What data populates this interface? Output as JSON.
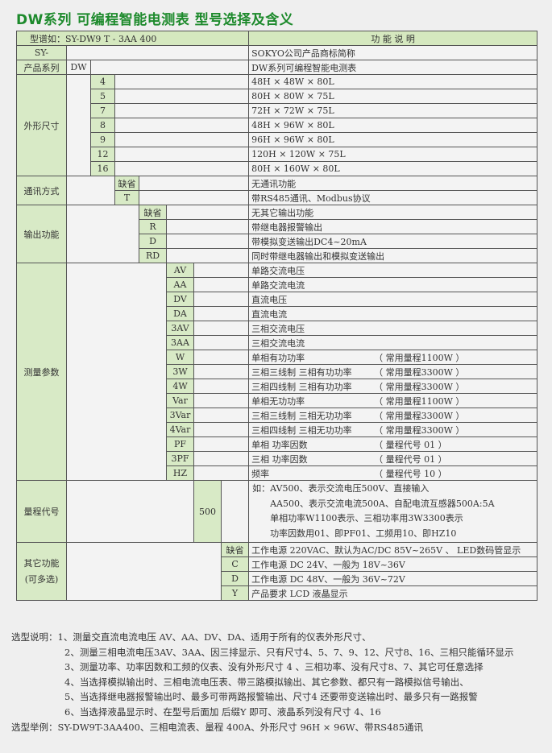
{
  "title": "DW系列 可编程智能电测表 型号选择及含义",
  "header": {
    "model": "型谱如：SY-DW9  T -  3AA  400",
    "function": "功 能 说 明"
  },
  "brand": {
    "label": "SY-",
    "desc": "SOKYO公司产品商标简称"
  },
  "series": {
    "label": "产品系列",
    "code": "DW",
    "desc": "DW系列可编程智能电测表"
  },
  "size": {
    "label": "外形尺寸",
    "rows": [
      {
        "code": "4",
        "desc": "48H × 48W × 80L"
      },
      {
        "code": "5",
        "desc": "80H × 80W × 75L"
      },
      {
        "code": "7",
        "desc": "72H × 72W × 75L"
      },
      {
        "code": "8",
        "desc": "48H × 96W × 80L"
      },
      {
        "code": "9",
        "desc": "96H × 96W × 80L"
      },
      {
        "code": "12",
        "desc": "120H × 120W × 75L"
      },
      {
        "code": "16",
        "desc": "80H × 160W × 80L"
      }
    ]
  },
  "comm": {
    "label": "通讯方式",
    "rows": [
      {
        "code": "缺省",
        "desc": "无通讯功能"
      },
      {
        "code": "T",
        "desc": "带RS485通讯、Modbus协议"
      }
    ]
  },
  "output": {
    "label": "输出功能",
    "rows": [
      {
        "code": "缺省",
        "desc": "无其它输出功能"
      },
      {
        "code": "R",
        "desc": "带继电器报警输出"
      },
      {
        "code": "D",
        "desc": "带模拟变送输出DC4~20mA"
      },
      {
        "code": "RD",
        "desc": "同时带继电器输出和模拟变送输出"
      }
    ]
  },
  "measure": {
    "label": "测量参数",
    "rows": [
      {
        "code": "AV",
        "desc": "单路交流电压",
        "note": ""
      },
      {
        "code": "AA",
        "desc": "单路交流电流",
        "note": ""
      },
      {
        "code": "DV",
        "desc": "直流电压",
        "note": ""
      },
      {
        "code": "DA",
        "desc": "直流电流",
        "note": ""
      },
      {
        "code": "3AV",
        "desc": "三相交流电压",
        "note": ""
      },
      {
        "code": "3AA",
        "desc": "三相交流电流",
        "note": ""
      },
      {
        "code": "W",
        "desc": "单相有功功率",
        "note": "（ 常用量程1100W ）"
      },
      {
        "code": "3W",
        "desc": "三相三线制  三相有功功率",
        "note": "（ 常用量程3300W ）"
      },
      {
        "code": "4W",
        "desc": "三相四线制  三相有功功率",
        "note": "（ 常用量程3300W ）"
      },
      {
        "code": "Var",
        "desc": "单相无功功率",
        "note": "（ 常用量程1100W ）"
      },
      {
        "code": "3Var",
        "desc": "三相三线制  三相无功功率",
        "note": "（ 常用量程3300W ）"
      },
      {
        "code": "4Var",
        "desc": "三相四线制  三相无功功率",
        "note": "（ 常用量程3300W ）"
      },
      {
        "code": "PF",
        "desc": "单相  功率因数",
        "note": "（ 量程代号 01 ）"
      },
      {
        "code": "3PF",
        "desc": "三相   功率因数",
        "note": "（ 量程代号 01 ）"
      },
      {
        "code": "HZ",
        "desc": "频率",
        "note": "（ 量程代号 10 ）"
      }
    ]
  },
  "range": {
    "label": "量程代号",
    "code": "500",
    "lines": [
      "如：AV500、表示交流电压500V、直接输入",
      "AA500、表示交流电流500A、自配电流互感器500A:5A",
      "单相功率W1100表示、三相功率用3W3300表示",
      "功率因数用01、即PF01、工频用10、即HZ10"
    ]
  },
  "other": {
    "label1": "其它功能",
    "label2": "(可多选)",
    "rows": [
      {
        "code": "缺省",
        "desc": "工作电源 220VAC、默认为AC/DC 85V~265V 、 LED数码管显示"
      },
      {
        "code": "C",
        "desc": "工作电源  DC 24V、一般为  18V~36V"
      },
      {
        "code": "D",
        "desc": "工作电源  DC 48V、一般为  36V~72V"
      },
      {
        "code": "Y",
        "desc": "产品要求  LCD 液晶显示"
      }
    ]
  },
  "notes": {
    "label": "选型说明：",
    "items": [
      "1、测量交直流电流电压 AV、AA、DV、DA、适用于所有的仪表外形尺寸、",
      "2、测量三相电流电压3AV、3AA、因三排显示、只有尺寸4、5、7、9、12、尺寸8、16、三相只能循环显示",
      "3、测量功率、功率因数和工频的仪表、没有外形尺寸 4 、三相功率、没有尺寸8、7、其它可任意选择",
      "4、当选择模拟输出时、三相电流电压表、带三路模拟输出、其它参数、都只有一路模拟信号输出、",
      "5、当选择继电器报警输出时、最多可带两路报警输出、尺寸4 还要带变送输出时、最多只有一路报警",
      "6、当选择液晶显示时、在型号后面加 后缀Y 即可、液晶系列没有尺寸 4、16"
    ],
    "example_label": "选型举例：",
    "example": "SY-DW9T-3AA400、三相电流表、量程 400A、外形尺寸 96H × 96W、带RS485通讯"
  }
}
